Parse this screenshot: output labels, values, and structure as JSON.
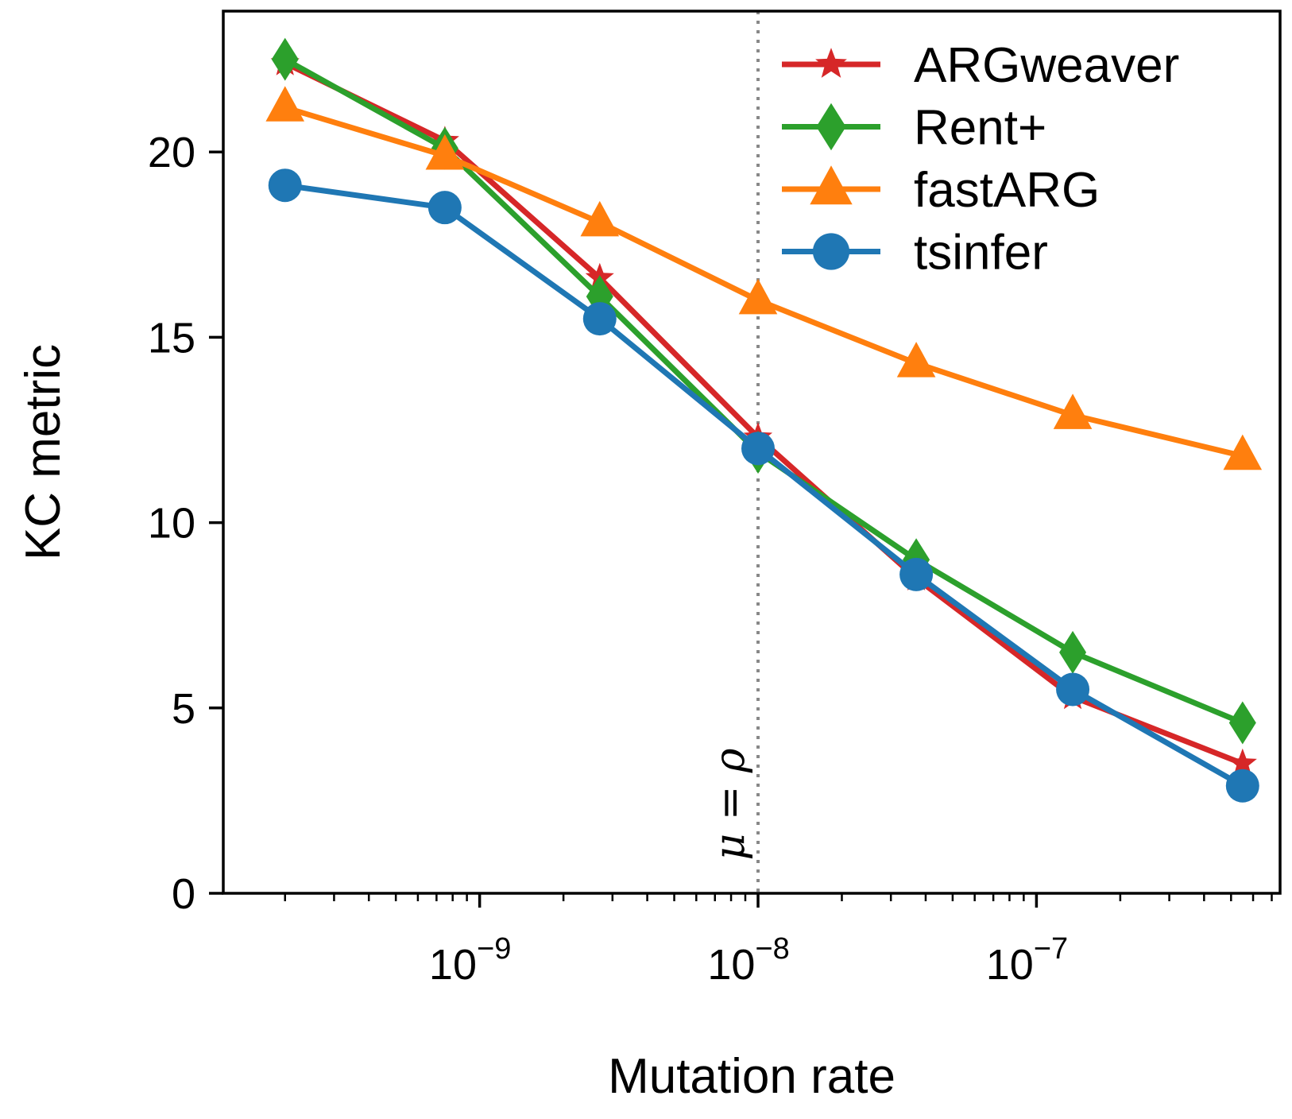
{
  "chart_data": {
    "type": "line",
    "xlabel": "Mutation rate",
    "ylabel": "KC metric",
    "xscale": "log",
    "xlim": [
      1.2e-10,
      7.5e-07
    ],
    "ylim": [
      0,
      23.8
    ],
    "x": [
      2e-10,
      7.5e-10,
      2.7e-09,
      1e-08,
      3.7e-08,
      1.35e-07,
      5.5e-07
    ],
    "x_ticks": [
      {
        "value": 1e-09,
        "base": "10",
        "exp": "−9"
      },
      {
        "value": 1e-08,
        "base": "10",
        "exp": "−8"
      },
      {
        "value": 1e-07,
        "base": "10",
        "exp": "−7"
      }
    ],
    "y_ticks": [
      {
        "value": 0,
        "label": "0"
      },
      {
        "value": 5,
        "label": "5"
      },
      {
        "value": 10,
        "label": "10"
      },
      {
        "value": 15,
        "label": "15"
      },
      {
        "value": 20,
        "label": "20"
      }
    ],
    "series": [
      {
        "name": "ARGweaver",
        "color": "#d62728",
        "marker": "star",
        "values": [
          22.4,
          20.3,
          16.6,
          12.3,
          8.5,
          5.3,
          3.5
        ]
      },
      {
        "name": "Rent+",
        "color": "#2ca02c",
        "marker": "diamond",
        "values": [
          22.5,
          20.1,
          16.1,
          11.9,
          9.0,
          6.5,
          4.6
        ]
      },
      {
        "name": "fastARG",
        "color": "#ff7f0e",
        "marker": "triangle",
        "values": [
          21.2,
          19.9,
          18.1,
          16.0,
          14.3,
          12.9,
          11.8
        ]
      },
      {
        "name": "tsinfer",
        "color": "#1f77b4",
        "marker": "circle",
        "values": [
          19.1,
          18.5,
          15.5,
          12.0,
          8.6,
          5.5,
          2.9
        ]
      }
    ],
    "vline": {
      "x": 1e-08,
      "label": "μ = ρ",
      "style": "dotted",
      "color": "#888888"
    },
    "legend": "top-right",
    "grid": false
  }
}
